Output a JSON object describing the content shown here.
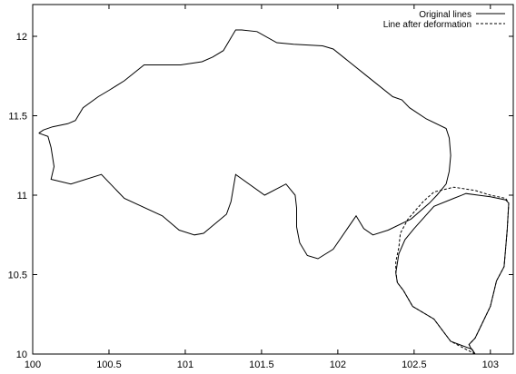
{
  "chart_data": {
    "type": "line",
    "title": "",
    "xlabel": "",
    "ylabel": "",
    "xlim": [
      100,
      103.15
    ],
    "ylim": [
      10,
      12.2
    ],
    "x_ticks": [
      100,
      100.5,
      101,
      101.5,
      102,
      102.5,
      103
    ],
    "x_tick_labels": [
      "100",
      "100.5",
      "101",
      "101.5",
      "102",
      "102.5",
      "103"
    ],
    "y_ticks": [
      10,
      10.5,
      11,
      11.5,
      12
    ],
    "y_tick_labels": [
      "10",
      "10.5",
      "11",
      "11.5",
      "12"
    ],
    "grid": false,
    "legend_position": "top-right",
    "series": [
      {
        "name": "Original lines",
        "style": "solid",
        "color": "#000000",
        "paths": [
          [
            [
              100.04,
              11.39
            ],
            [
              100.1,
              11.37
            ],
            [
              100.12,
              11.3
            ],
            [
              100.14,
              11.18
            ],
            [
              100.12,
              11.1
            ],
            [
              100.25,
              11.07
            ],
            [
              100.45,
              11.13
            ],
            [
              100.6,
              10.98
            ],
            [
              100.85,
              10.87
            ],
            [
              100.96,
              10.78
            ],
            [
              101.06,
              10.75
            ],
            [
              101.12,
              10.76
            ],
            [
              101.27,
              10.88
            ],
            [
              101.3,
              10.96
            ],
            [
              101.33,
              11.13
            ],
            [
              101.52,
              11.0
            ],
            [
              101.66,
              11.07
            ],
            [
              101.72,
              11.0
            ],
            [
              101.73,
              10.92
            ],
            [
              101.73,
              10.8
            ],
            [
              101.75,
              10.7
            ],
            [
              101.8,
              10.62
            ],
            [
              101.87,
              10.6
            ],
            [
              101.97,
              10.66
            ],
            [
              102.12,
              10.87
            ],
            [
              102.17,
              10.79
            ],
            [
              102.23,
              10.75
            ],
            [
              102.33,
              10.78
            ],
            [
              102.48,
              10.85
            ],
            [
              102.6,
              10.95
            ],
            [
              102.65,
              11.0
            ],
            [
              102.71,
              11.07
            ],
            [
              102.73,
              11.15
            ],
            [
              102.74,
              11.25
            ],
            [
              102.73,
              11.36
            ],
            [
              102.71,
              11.42
            ],
            [
              102.58,
              11.48
            ],
            [
              102.47,
              11.55
            ],
            [
              102.42,
              11.6
            ],
            [
              102.36,
              11.62
            ],
            [
              102.19,
              11.75
            ],
            [
              101.97,
              11.92
            ],
            [
              101.9,
              11.94
            ],
            [
              101.71,
              11.95
            ],
            [
              101.6,
              11.96
            ],
            [
              101.47,
              12.03
            ],
            [
              101.37,
              12.04
            ],
            [
              101.33,
              12.04
            ],
            [
              101.25,
              11.91
            ],
            [
              101.18,
              11.87
            ],
            [
              101.11,
              11.84
            ],
            [
              100.97,
              11.82
            ],
            [
              100.73,
              11.82
            ],
            [
              100.6,
              11.72
            ],
            [
              100.5,
              11.66
            ],
            [
              100.43,
              11.62
            ],
            [
              100.33,
              11.55
            ],
            [
              100.28,
              11.47
            ],
            [
              100.23,
              11.45
            ],
            [
              100.13,
              11.43
            ],
            [
              100.07,
              11.41
            ],
            [
              100.04,
              11.39
            ]
          ],
          [
            [
              102.9,
              10.0
            ],
            [
              102.88,
              10.03
            ],
            [
              102.74,
              10.08
            ],
            [
              102.63,
              10.22
            ],
            [
              102.49,
              10.3
            ],
            [
              102.43,
              10.4
            ],
            [
              102.39,
              10.45
            ],
            [
              102.38,
              10.51
            ],
            [
              102.4,
              10.63
            ],
            [
              102.44,
              10.72
            ],
            [
              102.5,
              10.79
            ],
            [
              102.63,
              10.93
            ],
            [
              102.76,
              10.98
            ],
            [
              102.84,
              11.01
            ],
            [
              102.92,
              11.0
            ],
            [
              103.0,
              10.99
            ],
            [
              103.1,
              10.97
            ],
            [
              103.12,
              10.95
            ],
            [
              103.11,
              10.78
            ],
            [
              103.09,
              10.55
            ],
            [
              103.04,
              10.46
            ],
            [
              103.0,
              10.3
            ],
            [
              102.95,
              10.2
            ],
            [
              102.9,
              10.1
            ],
            [
              102.86,
              10.06
            ],
            [
              102.87,
              10.04
            ],
            [
              102.9,
              10.0
            ]
          ]
        ]
      },
      {
        "name": "Line after deformation",
        "style": "dashed",
        "color": "#000000",
        "paths": [
          [
            [
              102.9,
              10.0
            ],
            [
              102.74,
              10.08
            ],
            [
              102.63,
              10.22
            ],
            [
              102.49,
              10.3
            ],
            [
              102.43,
              10.4
            ],
            [
              102.39,
              10.45
            ],
            [
              102.38,
              10.52
            ],
            [
              102.38,
              10.58
            ],
            [
              102.4,
              10.67
            ],
            [
              102.41,
              10.76
            ],
            [
              102.46,
              10.85
            ],
            [
              102.56,
              10.96
            ],
            [
              102.63,
              11.02
            ],
            [
              102.76,
              11.05
            ],
            [
              102.9,
              11.03
            ],
            [
              103.0,
              11.0
            ],
            [
              103.1,
              10.98
            ],
            [
              103.12,
              10.95
            ],
            [
              103.11,
              10.78
            ],
            [
              103.09,
              10.55
            ],
            [
              103.04,
              10.46
            ],
            [
              103.0,
              10.3
            ],
            [
              102.95,
              10.2
            ],
            [
              102.9,
              10.1
            ],
            [
              102.86,
              10.06
            ],
            [
              102.87,
              10.04
            ],
            [
              102.9,
              10.0
            ]
          ]
        ]
      }
    ]
  }
}
